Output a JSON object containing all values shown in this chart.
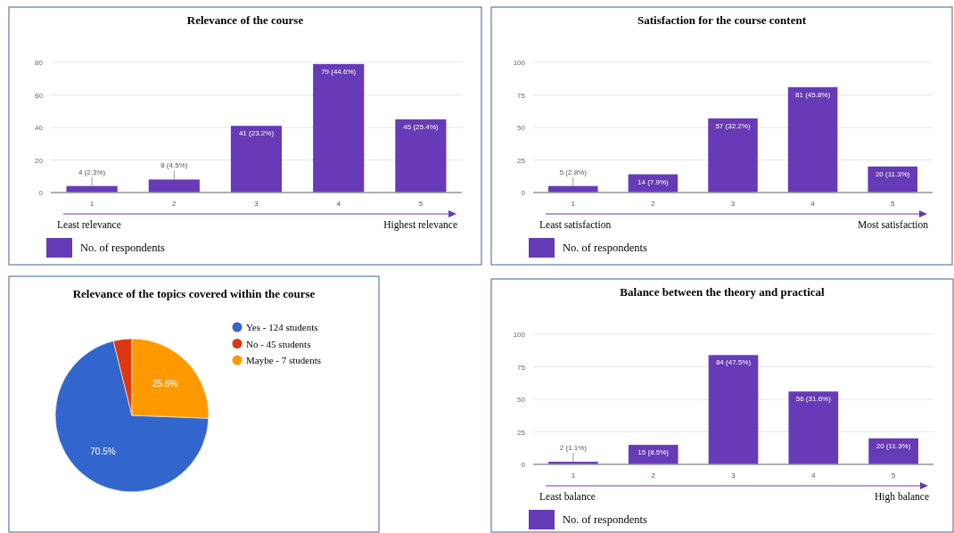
{
  "chart_data": [
    {
      "type": "bar",
      "title": "Relevance of the course",
      "categories": [
        "1",
        "2",
        "3",
        "4",
        "5"
      ],
      "series": [
        {
          "name": "No. of respondents",
          "color": "#673ab7",
          "values": [
            4,
            8,
            41,
            79,
            45
          ],
          "value_labels": [
            "4 (2.3%)",
            "8 (4.5%)",
            "41 (23.2%)",
            "79 (44.6%)",
            "45 (25.4%)"
          ]
        }
      ],
      "ylim": [
        0,
        80
      ],
      "yticks": [
        0,
        20,
        40,
        60,
        80
      ],
      "grid": "y",
      "legend": "bottom",
      "annotations": [
        "Least relevance",
        "Highest relevance"
      ]
    },
    {
      "type": "bar",
      "title": "Satisfaction for the course content",
      "categories": [
        "1",
        "2",
        "3",
        "4",
        "5"
      ],
      "series": [
        {
          "name": "No. of respondents",
          "color": "#673ab7",
          "values": [
            5,
            14,
            57,
            81,
            20
          ],
          "value_labels": [
            "5 (2.8%)",
            "14 (7.9%)",
            "57 (32.2%)",
            "81 (45.8%)",
            "20 (11.3%)"
          ]
        }
      ],
      "ylim": [
        0,
        100
      ],
      "yticks": [
        0,
        25,
        50,
        75,
        100
      ],
      "grid": "y",
      "legend": "bottom",
      "annotations": [
        "Least satisfaction",
        "Most satisfaction"
      ]
    },
    {
      "type": "pie",
      "title": "Relevance of the topics covered within the course",
      "categories": [
        "Yes - 124 students",
        "No - 45 students",
        "Maybe - 7 students"
      ],
      "values": [
        70.5,
        3.9,
        25.6
      ],
      "colors": [
        "#3366cc",
        "#dc3912",
        "#ff9900"
      ],
      "value_labels": [
        "70.5%",
        null,
        "25.6%"
      ],
      "legend": "right"
    },
    {
      "type": "bar",
      "title": "Balance between the theory and practical",
      "categories": [
        "1",
        "2",
        "3",
        "4",
        "5"
      ],
      "series": [
        {
          "name": "No. of respondents",
          "color": "#673ab7",
          "values": [
            2,
            15,
            84,
            56,
            20
          ],
          "value_labels": [
            "2 (1.1%)",
            "15 (8.5%)",
            "84 (47.5%)",
            "56 (31.6%)",
            "20 (11.3%)"
          ]
        }
      ],
      "ylim": [
        0,
        100
      ],
      "yticks": [
        0,
        25,
        50,
        75,
        100
      ],
      "grid": "y",
      "legend": "bottom",
      "annotations": [
        "Least balance",
        "High balance"
      ]
    }
  ]
}
